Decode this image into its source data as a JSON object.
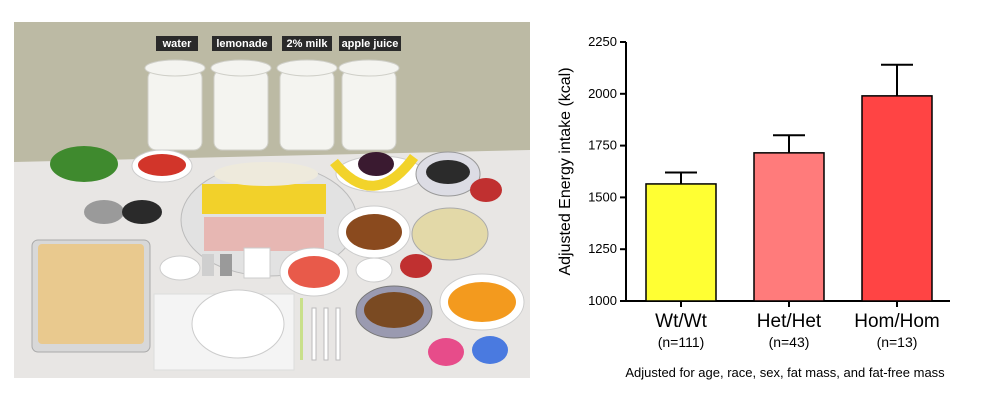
{
  "photo": {
    "labels": [
      "water",
      "lemonade",
      "2% milk",
      "apple juice"
    ]
  },
  "chart_data": {
    "type": "bar",
    "categories": [
      "Wt/Wt",
      "Het/Het",
      "Hom/Hom"
    ],
    "sample_sizes": [
      "(n=111)",
      "(n=43)",
      "(n=13)"
    ],
    "values": [
      1565,
      1715,
      1990
    ],
    "errors": [
      55,
      85,
      150
    ],
    "colors": [
      "#ffff33",
      "#ff7b7b",
      "#ff4444"
    ],
    "ylabel": "Adjusted Energy intake (kcal)",
    "ylim": [
      1000,
      2250
    ],
    "yticks": [
      1000,
      1250,
      1500,
      1750,
      2000,
      2250
    ],
    "footnote": "Adjusted for age, race, sex, fat mass, and fat-free mass",
    "grid": false
  }
}
